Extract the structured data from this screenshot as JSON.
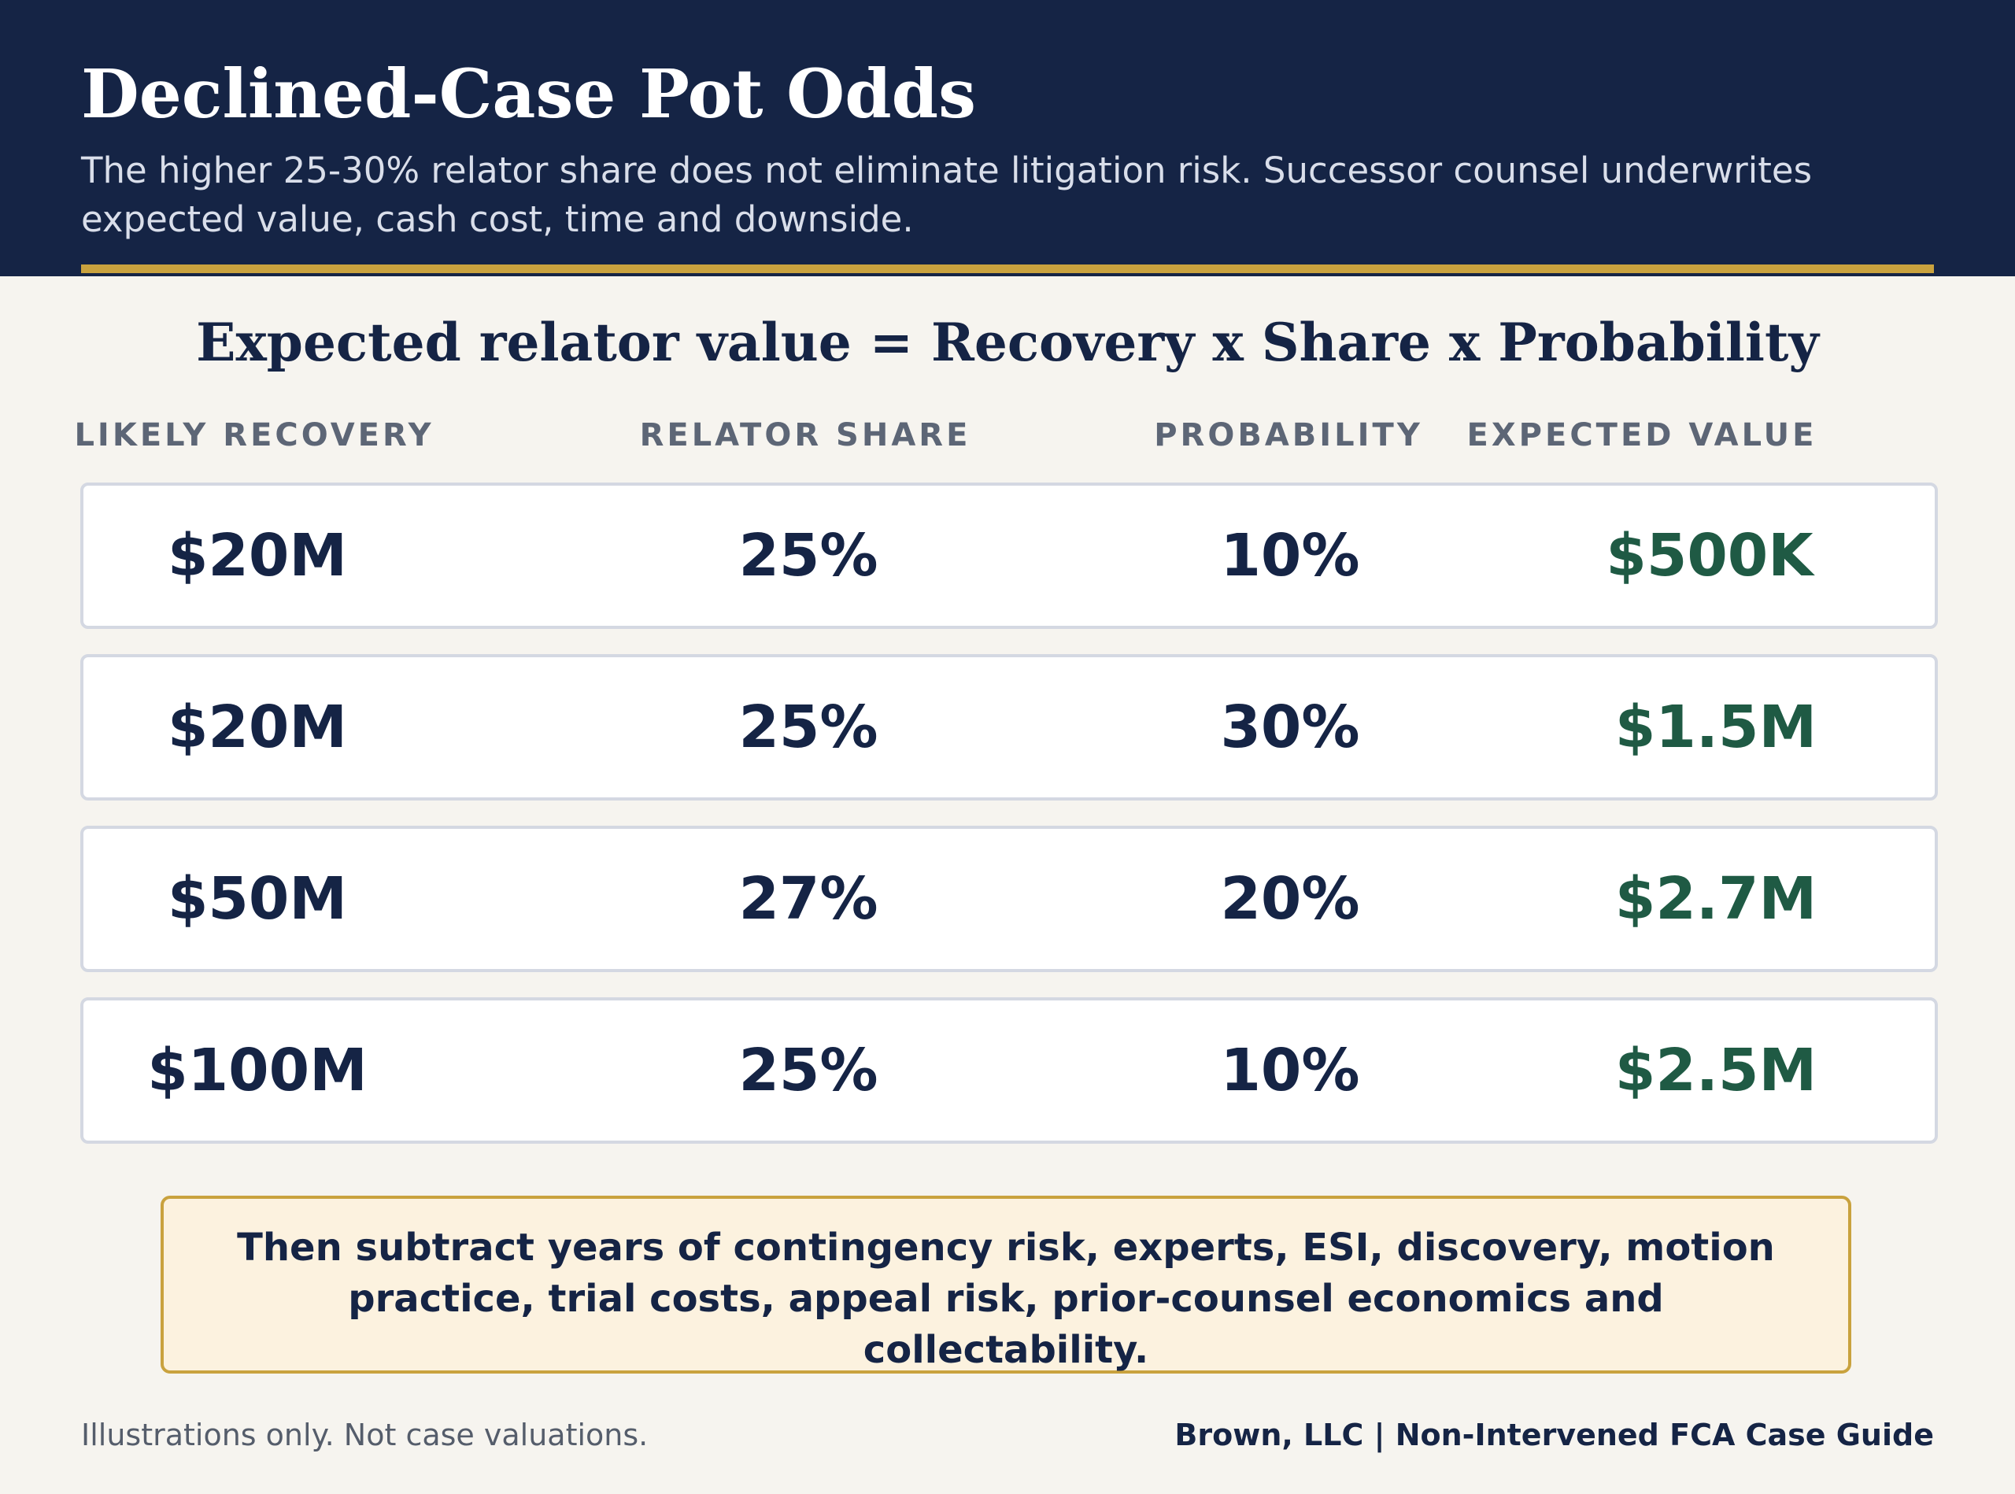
{
  "header": {
    "title": "Declined-Case Pot Odds",
    "subtitle": "The higher 25-30% relator share does not eliminate litigation risk. Successor counsel underwrites expected value, cash cost, time and downside."
  },
  "formula": "Expected relator value = Recovery x Share x Probability",
  "table": {
    "columns": [
      "LIKELY RECOVERY",
      "RELATOR SHARE",
      "PROBABILITY",
      "EXPECTED VALUE"
    ],
    "rows": [
      {
        "recovery": "$20M",
        "share": "25%",
        "probability": "10%",
        "expected_value": "$500K"
      },
      {
        "recovery": "$20M",
        "share": "25%",
        "probability": "30%",
        "expected_value": "$1.5M"
      },
      {
        "recovery": "$50M",
        "share": "27%",
        "probability": "20%",
        "expected_value": "$2.7M"
      },
      {
        "recovery": "$100M",
        "share": "25%",
        "probability": "10%",
        "expected_value": "$2.5M"
      }
    ]
  },
  "callout": "Then subtract years of contingency risk, experts, ESI, discovery, motion practice, trial costs, appeal risk, prior-counsel economics and collectability.",
  "footer": {
    "disclaimer": "Illustrations only. Not case valuations.",
    "brand": "Brown, LLC | Non-Intervened FCA Case Guide"
  },
  "colors": {
    "navy": "#152445",
    "gold": "#c9a23e",
    "green": "#1f5a44",
    "background": "#f6f4ef"
  }
}
